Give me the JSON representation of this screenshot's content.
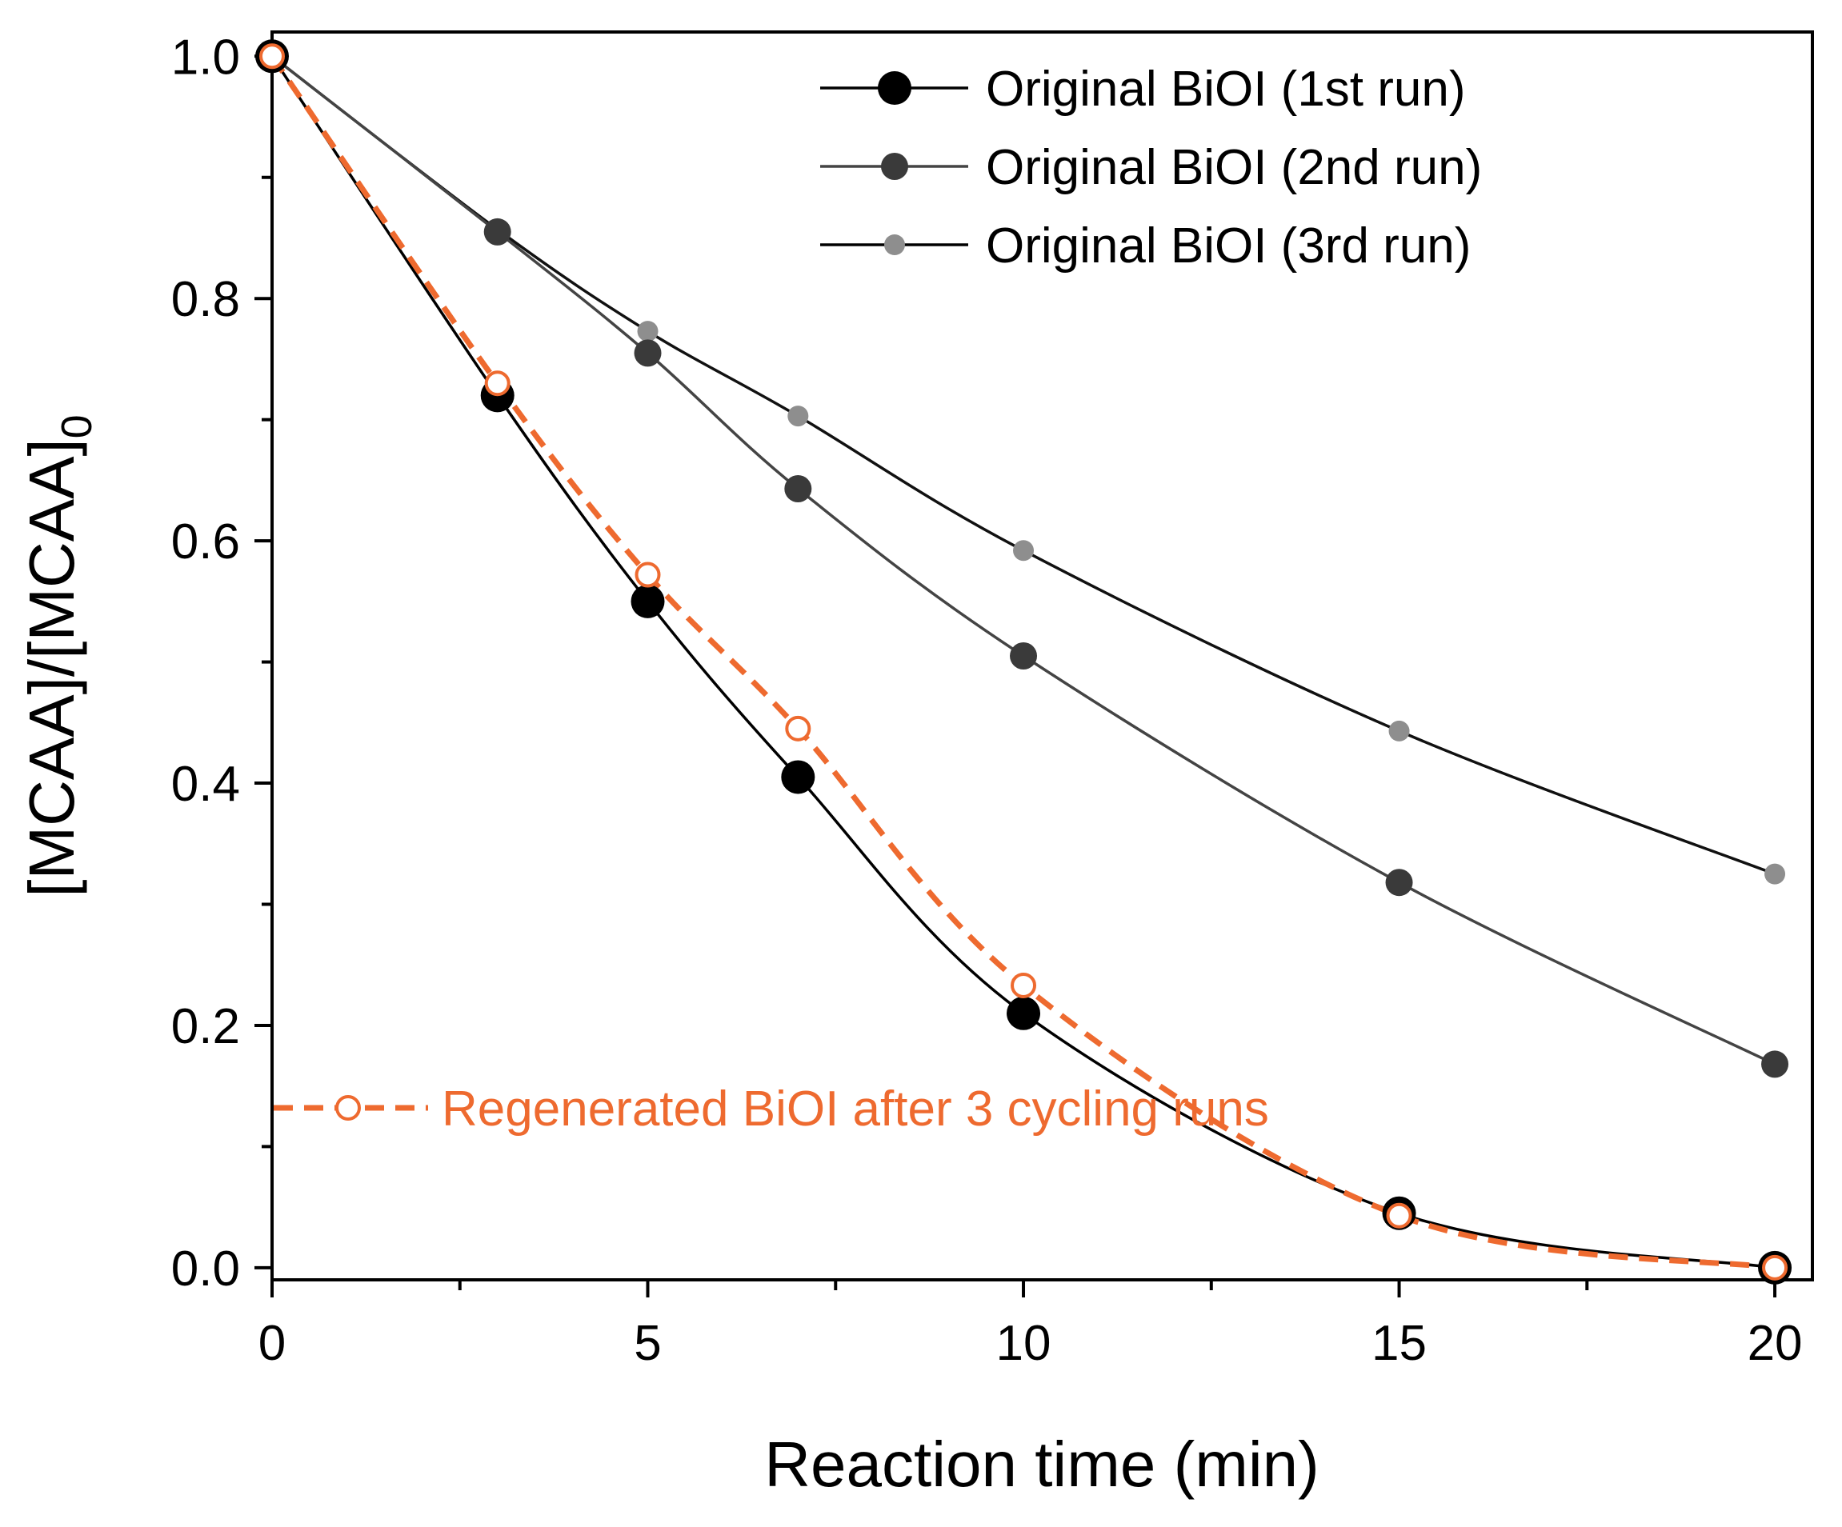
{
  "chart_data": {
    "type": "line",
    "xlabel": "Reaction time (min)",
    "ylabel": "[MCAA]/[MCAA]",
    "ylabel_sub": "0",
    "xlim": [
      0,
      20.5
    ],
    "ylim": [
      -0.01,
      1.02
    ],
    "xticks": [
      0,
      5,
      10,
      15,
      20
    ],
    "xtick_labels": [
      "0",
      "5",
      "10",
      "15",
      "20"
    ],
    "yticks": [
      0.0,
      0.2,
      0.4,
      0.6,
      0.8,
      1.0
    ],
    "ytick_labels": [
      "0.0",
      "0.2",
      "0.4",
      "0.6",
      "0.8",
      "1.0"
    ],
    "grid": false,
    "legend_position": "top-right",
    "x": [
      0,
      3,
      5,
      7,
      10,
      15,
      20
    ],
    "series": [
      {
        "name": "Original BiOI (1st run)",
        "values": [
          1.0,
          0.72,
          0.55,
          0.405,
          0.21,
          0.045,
          0.0
        ],
        "color": "#000000",
        "marker": "filled-circle-large",
        "line": "solid"
      },
      {
        "name": "Original BiOI (2nd run)",
        "values": [
          1.0,
          0.855,
          0.755,
          0.643,
          0.505,
          0.318,
          0.168
        ],
        "color": "#3a3a3a",
        "marker": "filled-circle",
        "line": "solid"
      },
      {
        "name": "Original BiOI (3rd run)",
        "values": [
          1.0,
          0.857,
          0.773,
          0.703,
          0.592,
          0.443,
          0.325
        ],
        "color": "#8e8e8e",
        "marker": "filled-circle-small",
        "line": "solid"
      },
      {
        "name": "Regenerated BiOI after 3 cycling runs",
        "values": [
          1.0,
          0.73,
          0.572,
          0.445,
          0.233,
          0.043,
          0.0
        ],
        "color": "#ee6a2f",
        "marker": "open-circle",
        "line": "dashed"
      }
    ]
  }
}
